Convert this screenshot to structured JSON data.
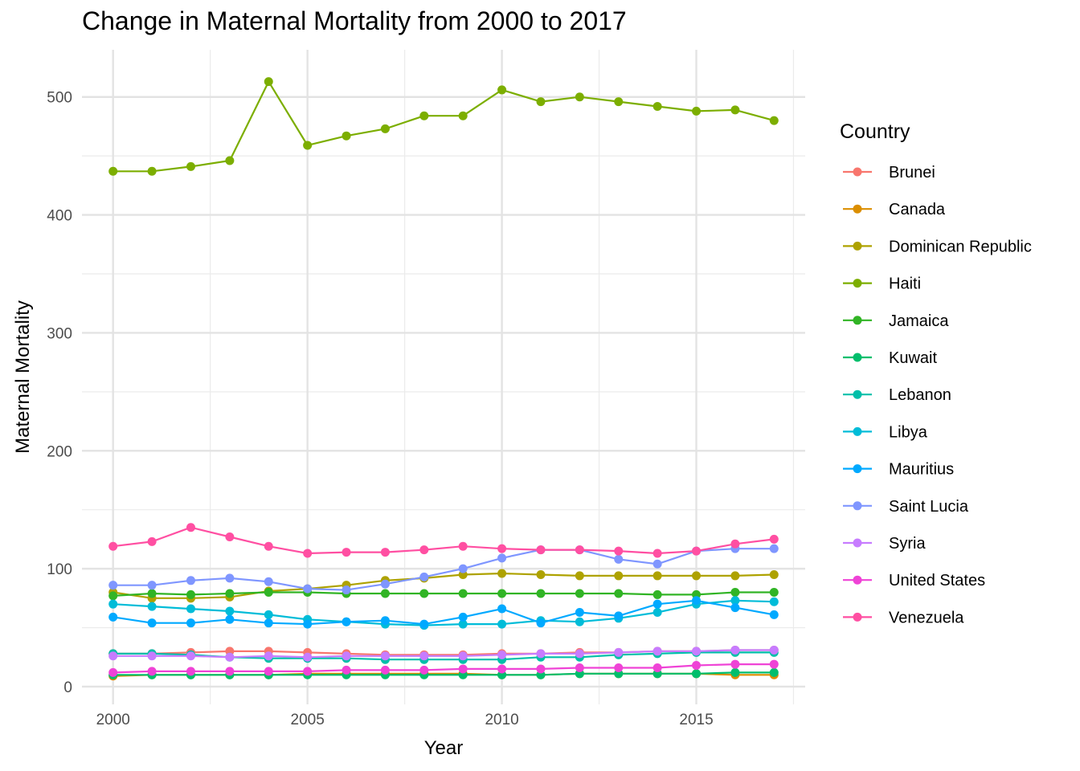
{
  "chart_data": {
    "type": "line",
    "title": "Change in Maternal Mortality from 2000 to 2017",
    "xlabel": "Year",
    "ylabel": "Maternal Mortality",
    "xlim": [
      1999.2,
      2017.8
    ],
    "ylim": [
      -15,
      540
    ],
    "x_ticks": [
      2000,
      2005,
      2010,
      2015
    ],
    "y_ticks": [
      0,
      100,
      200,
      300,
      400,
      500
    ],
    "grid": true,
    "legend": {
      "title": "Country",
      "position": "right"
    },
    "x": [
      2000,
      2001,
      2002,
      2003,
      2004,
      2005,
      2006,
      2007,
      2008,
      2009,
      2010,
      2011,
      2012,
      2013,
      2014,
      2015,
      2016,
      2017
    ],
    "series": [
      {
        "name": "Brunei",
        "color": "#F8766D",
        "values": [
          28,
          28,
          29,
          30,
          30,
          29,
          28,
          27,
          27,
          27,
          28,
          28,
          29,
          29,
          30,
          30,
          31,
          31
        ]
      },
      {
        "name": "Canada",
        "color": "#DB8E00",
        "values": [
          9,
          10,
          10,
          10,
          10,
          11,
          11,
          11,
          11,
          11,
          10,
          10,
          11,
          11,
          11,
          11,
          10,
          10
        ]
      },
      {
        "name": "Dominican Republic",
        "color": "#AEA200",
        "values": [
          80,
          75,
          75,
          76,
          81,
          83,
          86,
          90,
          92,
          95,
          96,
          95,
          94,
          94,
          94,
          94,
          94,
          95
        ]
      },
      {
        "name": "Haiti",
        "color": "#7CAE00",
        "values": [
          437,
          437,
          441,
          446,
          513,
          459,
          467,
          473,
          484,
          484,
          506,
          496,
          500,
          496,
          492,
          488,
          489,
          480
        ]
      },
      {
        "name": "Jamaica",
        "color": "#31B425",
        "values": [
          77,
          79,
          78,
          79,
          80,
          80,
          79,
          79,
          79,
          79,
          79,
          79,
          79,
          79,
          78,
          78,
          80,
          80
        ]
      },
      {
        "name": "Kuwait",
        "color": "#00BE6C",
        "values": [
          10,
          10,
          10,
          10,
          10,
          10,
          10,
          10,
          10,
          10,
          10,
          10,
          11,
          11,
          11,
          11,
          12,
          12
        ]
      },
      {
        "name": "Lebanon",
        "color": "#00BFA9",
        "values": [
          28,
          28,
          27,
          25,
          24,
          24,
          24,
          23,
          23,
          23,
          23,
          25,
          25,
          27,
          28,
          29,
          29,
          29
        ]
      },
      {
        "name": "Libya",
        "color": "#00BCD8",
        "values": [
          70,
          68,
          66,
          64,
          61,
          57,
          55,
          53,
          52,
          53,
          53,
          56,
          55,
          58,
          63,
          70,
          73,
          72
        ]
      },
      {
        "name": "Mauritius",
        "color": "#00A9FF",
        "values": [
          59,
          54,
          54,
          57,
          54,
          53,
          55,
          56,
          53,
          59,
          66,
          54,
          63,
          60,
          70,
          73,
          67,
          61
        ]
      },
      {
        "name": "Saint Lucia",
        "color": "#7F96FF",
        "values": [
          86,
          86,
          90,
          92,
          89,
          83,
          82,
          87,
          93,
          100,
          109,
          116,
          116,
          108,
          104,
          115,
          117,
          117
        ]
      },
      {
        "name": "Syria",
        "color": "#C77CFF",
        "values": [
          26,
          26,
          26,
          25,
          26,
          25,
          26,
          26,
          26,
          26,
          27,
          28,
          28,
          29,
          30,
          30,
          31,
          31
        ]
      },
      {
        "name": "United States",
        "color": "#EF43D6",
        "values": [
          12,
          13,
          13,
          13,
          13,
          13,
          14,
          14,
          14,
          15,
          15,
          15,
          16,
          16,
          16,
          18,
          19,
          19
        ]
      },
      {
        "name": "Venezuela",
        "color": "#FF4FA2",
        "values": [
          119,
          123,
          135,
          127,
          119,
          113,
          114,
          114,
          116,
          119,
          117,
          116,
          116,
          115,
          113,
          115,
          121,
          125
        ]
      }
    ]
  }
}
